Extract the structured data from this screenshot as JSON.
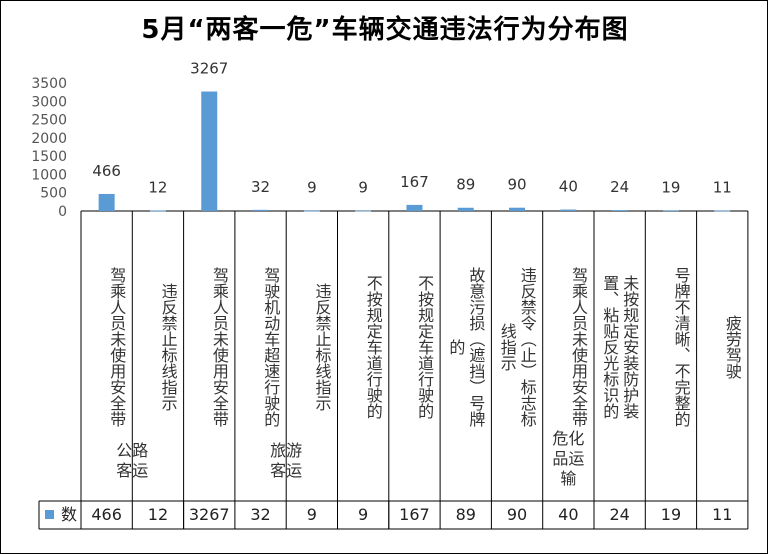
{
  "chart_data": {
    "type": "bar",
    "title": "5月“两客一危”车辆交通违法行为分布图",
    "ylim": [
      0,
      3500
    ],
    "yticks": [
      "0",
      "500",
      "1000",
      "1500",
      "2000",
      "2500",
      "3000",
      "3500"
    ],
    "bar_color": "#5b9bd5",
    "legend": "数",
    "categories": [
      "驾乘人员未使用安全带",
      "违反禁止标线指示",
      "驾乘人员未使用安全带",
      "驾驶机动车超速行驶的",
      "违反禁止标线指示",
      "不按规定车道行驶的",
      "不按规定车道行驶的",
      "故意污损（遮挡）号牌的",
      "违反禁令（止）标志标线指示",
      "驾乘人员未使用安全带",
      "未按规定安装防护装置、粘贴反光标识的",
      "号牌不清晰、不完整的",
      "疲劳驾驶"
    ],
    "values": [
      466,
      12,
      3267,
      32,
      9,
      9,
      167,
      89,
      90,
      40,
      24,
      19,
      11
    ],
    "groups": [
      "公路客运",
      "旅游客运",
      "危化品运输"
    ]
  }
}
